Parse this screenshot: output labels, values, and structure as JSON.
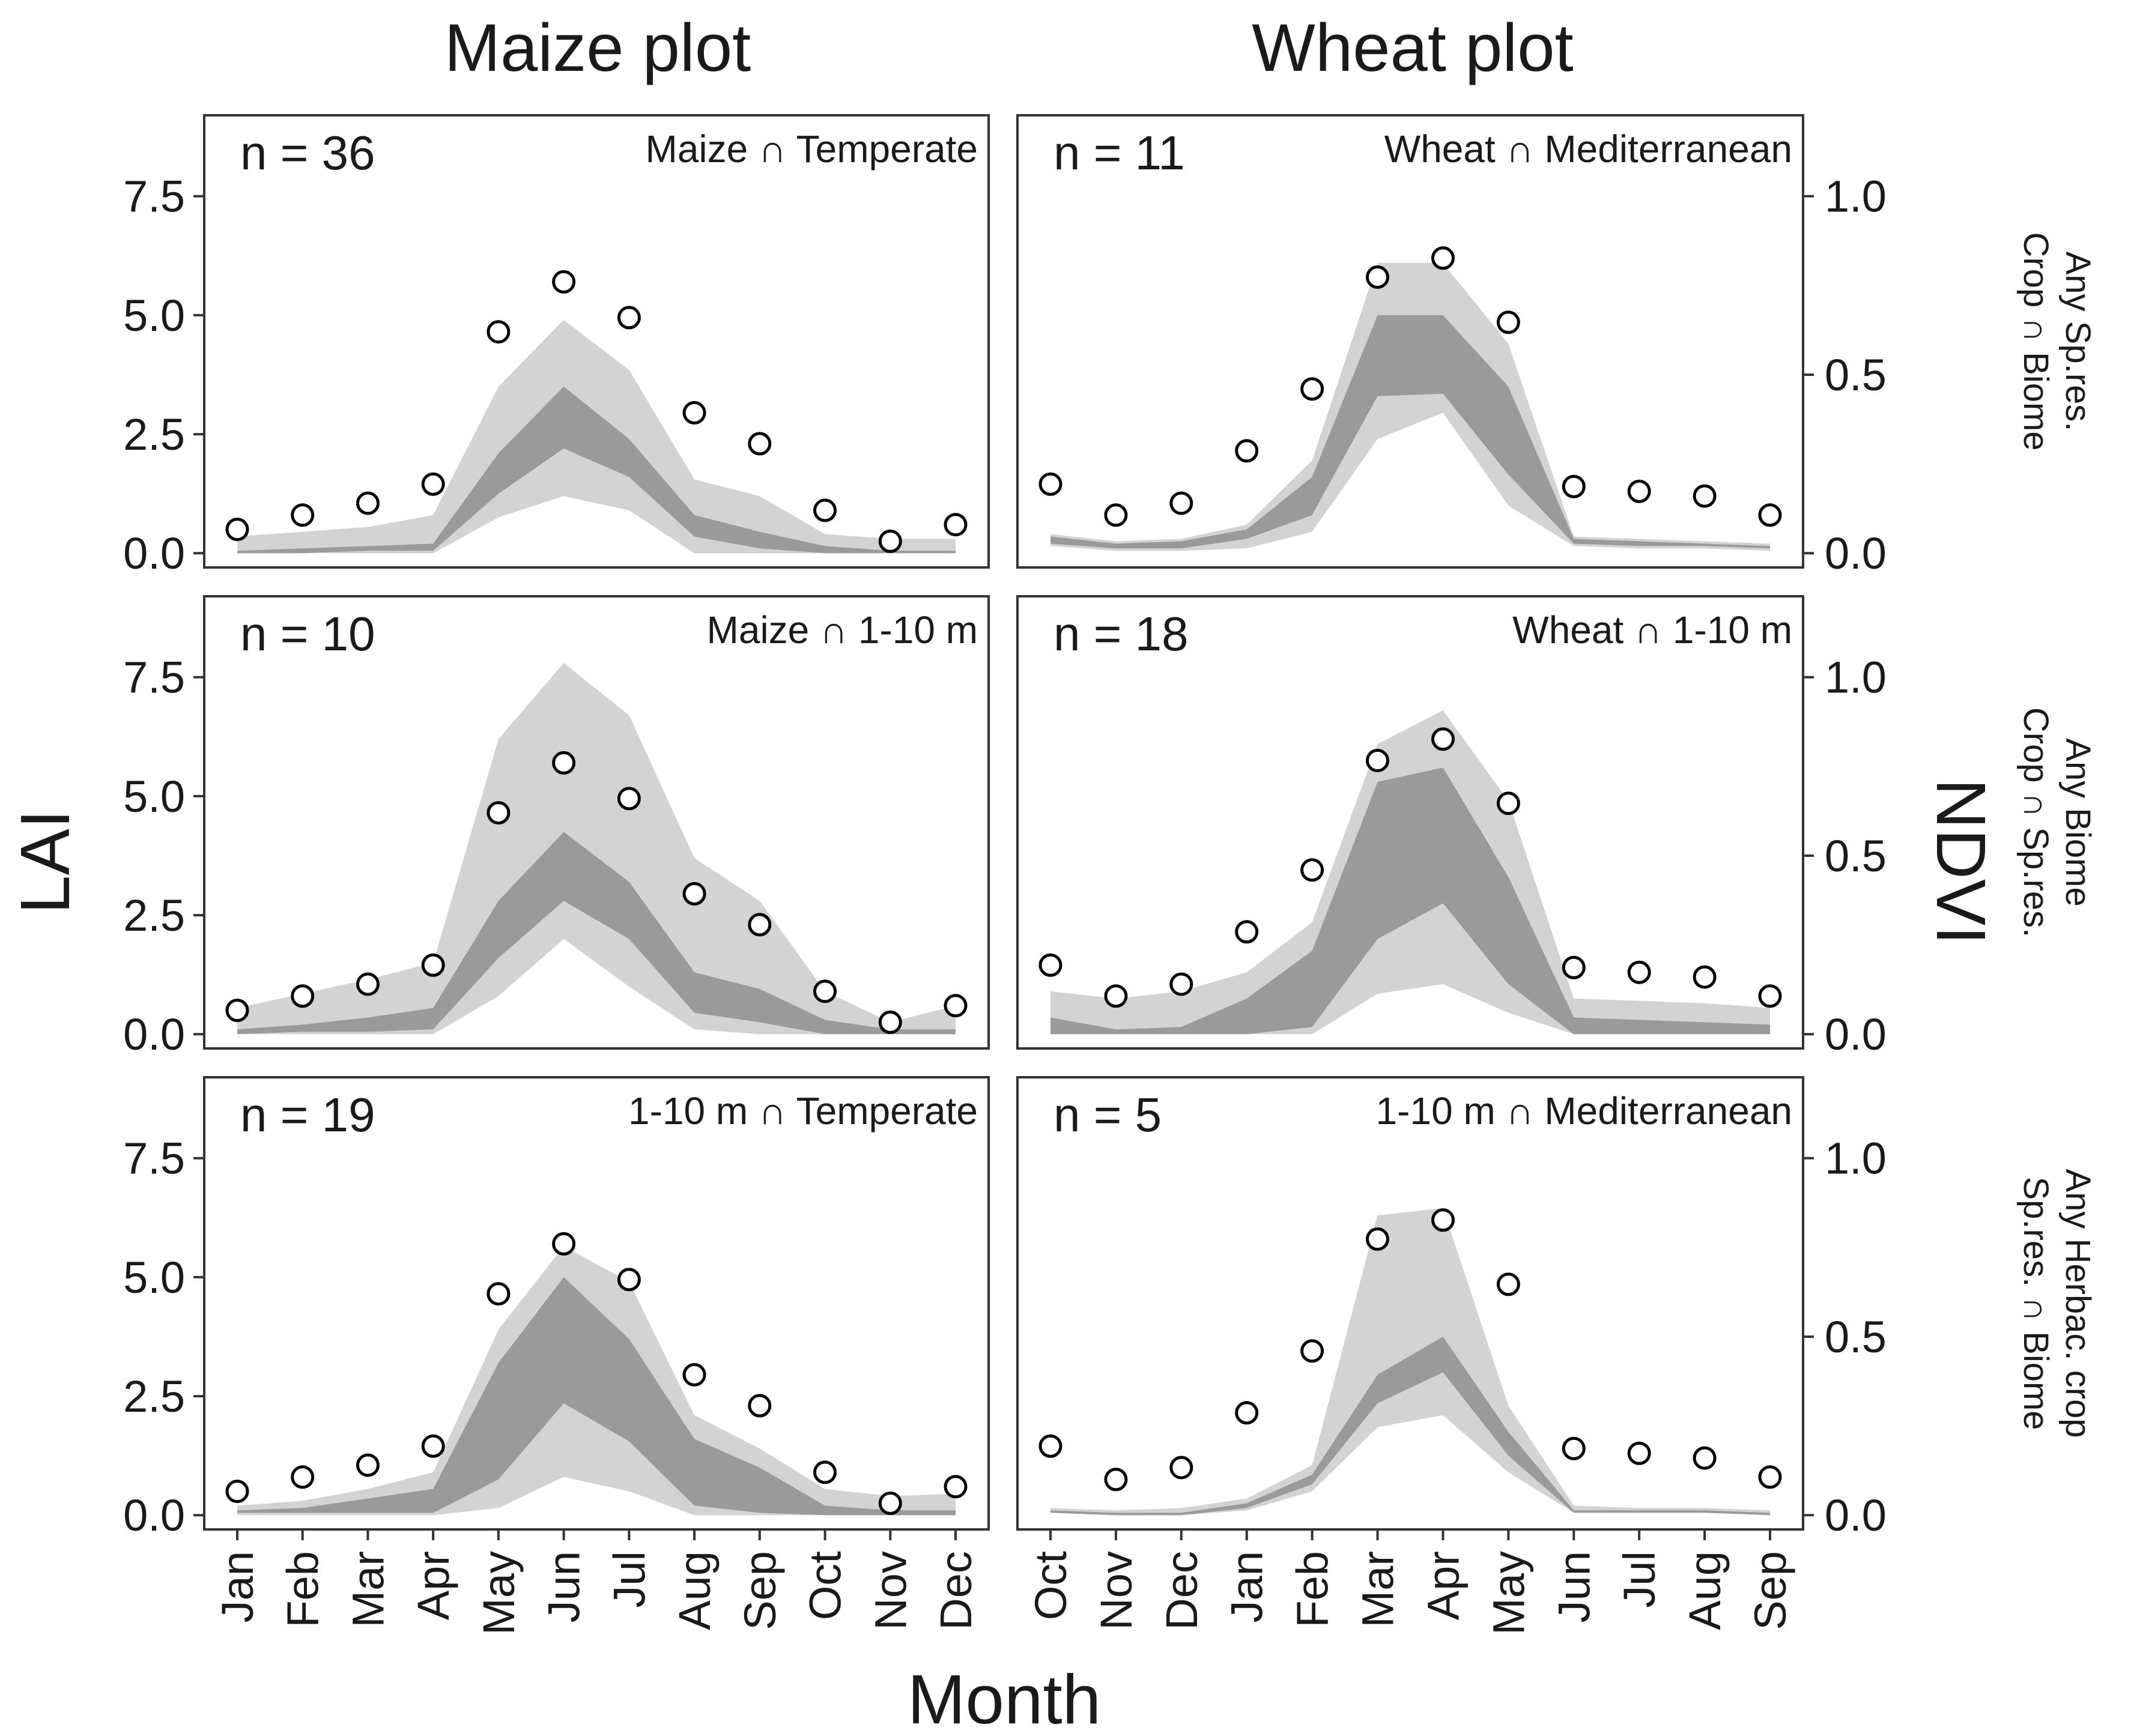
{
  "chart_data": {
    "type": "area",
    "column_titles": [
      "Maize plot",
      "Wheat plot"
    ],
    "xlabel": "Month",
    "ylabel_left": "LAI",
    "ylabel_right": "NDVI",
    "left_ticks": [
      "7.5",
      "5.0",
      "2.5",
      "0.0"
    ],
    "left_tick_values": [
      7.5,
      5.0,
      2.5,
      0.0
    ],
    "right_ticks": [
      "1.0",
      "0.5",
      "0.0"
    ],
    "right_tick_values": [
      1.0,
      0.5,
      0.0
    ],
    "ylim_lai": [
      -0.3,
      9.2
    ],
    "ndvi_to_lai_factor": 7.5,
    "columns": [
      {
        "months": [
          "Jan",
          "Feb",
          "Mar",
          "Apr",
          "May",
          "Jun",
          "Jul",
          "Aug",
          "Sep",
          "Oct",
          "Nov",
          "Dec"
        ]
      },
      {
        "months": [
          "Oct",
          "Nov",
          "Dec",
          "Jan",
          "Feb",
          "Mar",
          "Apr",
          "May",
          "Jun",
          "Jul",
          "Aug",
          "Sep"
        ]
      }
    ],
    "row_labels": [
      [
        "Any Sp.res.",
        "Crop ∩ Biome"
      ],
      [
        "Any Biome",
        "Crop ∩ Sp.res."
      ],
      [
        "Any Herbac. crop",
        "Sp.res. ∩ Biome"
      ]
    ],
    "panels": [
      {
        "n_label": "n = 36",
        "label": "Maize ∩ Temperate",
        "observed_lai": [
          0.5,
          0.8,
          1.05,
          1.45,
          4.65,
          5.7,
          4.95,
          2.95,
          2.3,
          0.9,
          0.25,
          0.6
        ],
        "outer_low": [
          0.0,
          0.0,
          0.0,
          0.0,
          0.75,
          1.2,
          0.9,
          0.0,
          0.0,
          0.0,
          0.0,
          0.0
        ],
        "inner_low": [
          0.0,
          0.0,
          0.05,
          0.05,
          1.25,
          2.2,
          1.6,
          0.35,
          0.1,
          0.0,
          0.0,
          0.0
        ],
        "inner_high": [
          0.05,
          0.1,
          0.15,
          0.2,
          2.1,
          3.5,
          2.4,
          0.8,
          0.45,
          0.15,
          0.05,
          0.05
        ],
        "outer_high": [
          0.35,
          0.45,
          0.55,
          0.8,
          3.5,
          4.9,
          3.85,
          1.55,
          1.2,
          0.4,
          0.3,
          0.3
        ]
      },
      {
        "n_label": "n = 11",
        "label": "Wheat ∩ Mediterranean",
        "observed_lai": [
          1.45,
          0.8,
          1.05,
          2.15,
          3.45,
          5.8,
          6.2,
          4.85,
          1.4,
          1.3,
          1.2,
          0.8
        ],
        "outer_low": [
          0.15,
          0.05,
          0.05,
          0.1,
          0.45,
          2.4,
          2.95,
          1.0,
          0.15,
          0.1,
          0.1,
          0.05
        ],
        "inner_low": [
          0.2,
          0.1,
          0.1,
          0.3,
          0.8,
          3.3,
          3.35,
          1.65,
          0.2,
          0.15,
          0.15,
          0.1
        ],
        "inner_high": [
          0.35,
          0.2,
          0.25,
          0.5,
          1.6,
          5.0,
          5.0,
          3.5,
          0.3,
          0.25,
          0.2,
          0.15
        ],
        "outer_high": [
          0.4,
          0.25,
          0.3,
          0.6,
          1.95,
          6.1,
          6.1,
          4.4,
          0.35,
          0.3,
          0.25,
          0.2
        ]
      },
      {
        "n_label": "n = 10",
        "label": "Maize ∩ 1-10 m",
        "observed_lai": [
          0.5,
          0.8,
          1.05,
          1.45,
          4.65,
          5.7,
          4.95,
          2.95,
          2.3,
          0.9,
          0.25,
          0.6
        ],
        "outer_low": [
          0.0,
          0.0,
          0.0,
          0.0,
          0.8,
          2.0,
          1.0,
          0.1,
          0.0,
          0.0,
          0.0,
          0.0
        ],
        "inner_low": [
          0.0,
          0.05,
          0.05,
          0.1,
          1.6,
          2.8,
          2.0,
          0.45,
          0.25,
          0.0,
          0.0,
          0.0
        ],
        "inner_high": [
          0.1,
          0.2,
          0.35,
          0.55,
          2.8,
          4.25,
          3.2,
          1.3,
          0.95,
          0.3,
          0.1,
          0.1
        ],
        "outer_high": [
          0.55,
          0.85,
          1.15,
          1.5,
          6.2,
          7.8,
          6.7,
          3.7,
          2.8,
          0.9,
          0.25,
          0.6
        ]
      },
      {
        "n_label": "n = 18",
        "label": "Wheat ∩ 1-10 m",
        "observed_lai": [
          1.45,
          0.8,
          1.05,
          2.15,
          3.45,
          5.75,
          6.2,
          4.85,
          1.4,
          1.3,
          1.2,
          0.8
        ],
        "outer_low": [
          0.0,
          0.0,
          0.0,
          0.0,
          0.0,
          0.85,
          1.05,
          0.45,
          0.0,
          0.0,
          0.0,
          0.0
        ],
        "inner_low": [
          0.0,
          0.0,
          0.0,
          0.0,
          0.15,
          2.0,
          2.75,
          1.05,
          0.0,
          0.0,
          0.0,
          0.0
        ],
        "inner_high": [
          0.35,
          0.1,
          0.15,
          0.75,
          1.75,
          5.3,
          5.6,
          3.3,
          0.35,
          0.3,
          0.25,
          0.2
        ],
        "outer_high": [
          0.9,
          0.75,
          0.9,
          1.3,
          2.35,
          6.1,
          6.8,
          4.9,
          0.75,
          0.7,
          0.65,
          0.55
        ]
      },
      {
        "n_label": "n = 19",
        "label": "1-10 m ∩ Temperate",
        "observed_lai": [
          0.5,
          0.8,
          1.05,
          1.45,
          4.65,
          5.7,
          4.95,
          2.95,
          2.3,
          0.9,
          0.25,
          0.6
        ],
        "outer_low": [
          0.0,
          0.0,
          0.0,
          0.0,
          0.15,
          0.8,
          0.5,
          0.0,
          0.0,
          0.0,
          0.0,
          0.0
        ],
        "inner_low": [
          0.05,
          0.05,
          0.05,
          0.05,
          0.75,
          2.35,
          1.55,
          0.2,
          0.05,
          0.0,
          0.0,
          0.0
        ],
        "inner_high": [
          0.1,
          0.15,
          0.35,
          0.55,
          3.2,
          5.0,
          3.7,
          1.6,
          1.0,
          0.2,
          0.1,
          0.1
        ],
        "outer_high": [
          0.2,
          0.3,
          0.55,
          0.9,
          3.9,
          5.65,
          4.9,
          2.1,
          1.4,
          0.55,
          0.4,
          0.45
        ]
      },
      {
        "n_label": "n = 5",
        "label": "1-10 m ∩ Mediterranean",
        "observed_lai": [
          1.45,
          0.75,
          1.0,
          2.15,
          3.45,
          5.8,
          6.2,
          4.85,
          1.4,
          1.3,
          1.2,
          0.8
        ],
        "outer_low": [
          0.05,
          0.0,
          0.0,
          0.1,
          0.5,
          1.85,
          2.1,
          0.9,
          0.05,
          0.05,
          0.05,
          0.0
        ],
        "inner_low": [
          0.05,
          0.0,
          0.0,
          0.15,
          0.65,
          2.35,
          3.0,
          1.25,
          0.05,
          0.05,
          0.05,
          0.0
        ],
        "inner_high": [
          0.1,
          0.05,
          0.05,
          0.25,
          0.85,
          2.95,
          3.75,
          1.75,
          0.1,
          0.1,
          0.1,
          0.05
        ],
        "outer_high": [
          0.15,
          0.1,
          0.15,
          0.35,
          1.05,
          6.3,
          6.45,
          2.3,
          0.2,
          0.15,
          0.15,
          0.1
        ]
      }
    ]
  }
}
